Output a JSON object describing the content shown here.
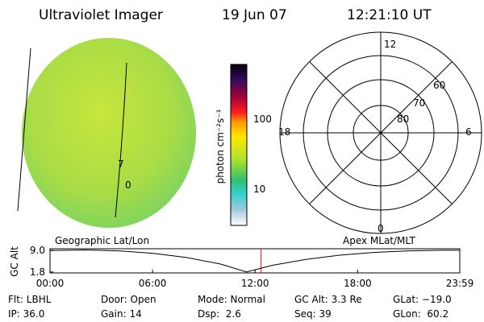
{
  "header": {
    "title": "Ultraviolet Imager",
    "date": "19 Jun 07",
    "time": "12:21:10 UT"
  },
  "colorbar": {
    "label": "photon cm⁻²s⁻¹",
    "ticks": [
      "100",
      "10"
    ]
  },
  "polar": {
    "mlt_labels": [
      "12",
      "18",
      "6",
      "0"
    ],
    "ring_labels": [
      "60",
      "70",
      "80"
    ]
  },
  "image": {
    "labels": [
      "7",
      "0"
    ]
  },
  "panel_labels": {
    "left": "Geographic Lat/Lon",
    "right": "Apex MLat/MLT"
  },
  "chart_data": {
    "type": "line",
    "ylabel": "GC Alt",
    "x": [
      0,
      2,
      4,
      6,
      8,
      10,
      11.5,
      13,
      15,
      17,
      19,
      21,
      23,
      23.98
    ],
    "series": [
      {
        "color": "#000000",
        "values": [
          8.9,
          9.1,
          8.8,
          8.0,
          6.6,
          4.4,
          1.8,
          4.0,
          6.0,
          7.4,
          8.3,
          8.8,
          9.0,
          9.0
        ]
      }
    ],
    "xlim": [
      0,
      23.98
    ],
    "ylim": [
      1.5,
      9.5
    ],
    "xticks": [
      {
        "value": 0,
        "label": "00:00"
      },
      {
        "value": 6,
        "label": "06:00"
      },
      {
        "value": 12,
        "label": "12:00"
      },
      {
        "value": 18,
        "label": "18:00"
      },
      {
        "value": 23.98,
        "label": "23:59"
      }
    ],
    "yticks": [
      {
        "value": 9,
        "label": "9.0"
      },
      {
        "value": 1.8,
        "label": "1.8"
      }
    ],
    "current_time": 12.353,
    "marker_color": "#ff0000"
  },
  "footer": [
    [
      "Flt: LBHL",
      "Door: Open",
      "Mode: Normal",
      "GC Alt: 3.3 Re",
      "GLat: −19.0"
    ],
    [
      "IP: 36.0",
      "Gain: 14",
      "Dsp:  2.6",
      "Seq: 39",
      "GLon:  60.2"
    ]
  ]
}
